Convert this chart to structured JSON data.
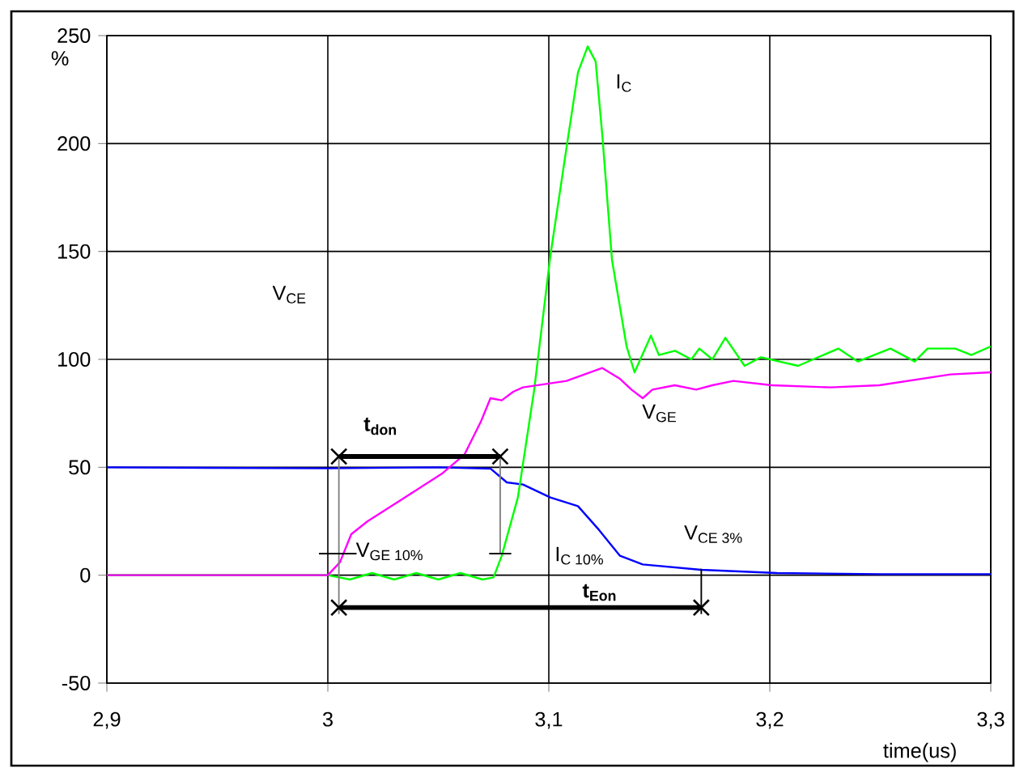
{
  "chart_data": {
    "type": "line",
    "xlabel": "time(us)",
    "ylabel": "%",
    "xlim": [
      2.9,
      3.3
    ],
    "ylim": [
      -50,
      250
    ],
    "xticks": [
      {
        "value": 2.9,
        "label": "2,9"
      },
      {
        "value": 3.0,
        "label": "3"
      },
      {
        "value": 3.1,
        "label": "3,1"
      },
      {
        "value": 3.2,
        "label": "3,2"
      },
      {
        "value": 3.3,
        "label": "3,3"
      }
    ],
    "yticks": [
      -50,
      0,
      50,
      100,
      150,
      200,
      250
    ],
    "grid": true,
    "marker": "none",
    "line_style": "solid",
    "series": [
      {
        "color": "#0000ff",
        "x": [
          2.9,
          3.0,
          3.05,
          3.0736,
          3.081,
          3.0883,
          3.1007,
          3.1132,
          3.1227,
          3.1322,
          3.1425,
          3.1689,
          3.2033,
          3.25,
          3.3
        ],
        "values": [
          50,
          49.5,
          50,
          49.4,
          43,
          42,
          36,
          32,
          21,
          9,
          5,
          2.5,
          1,
          0.5,
          0.5
        ]
      },
      {
        "color": "#00ff00",
        "x": [
          2.9,
          3.0,
          3.01,
          3.02,
          3.03,
          3.04,
          3.05,
          3.06,
          3.07,
          3.075,
          3.0787,
          3.086,
          3.0934,
          3.1007,
          3.108,
          3.1132,
          3.1176,
          3.1212,
          3.1242,
          3.1286,
          3.1352,
          3.1388,
          3.1462,
          3.1498,
          3.1571,
          3.1645,
          3.1681,
          3.174,
          3.1799,
          3.1886,
          3.196,
          3.2128,
          3.2311,
          3.2399,
          3.2546,
          3.2656,
          3.2714,
          3.2839,
          3.2912,
          3.3
        ],
        "values": [
          0,
          0,
          -2,
          1,
          -2,
          1,
          -2,
          1,
          -2,
          -1,
          9,
          36,
          86,
          148,
          198,
          233,
          245,
          238,
          204,
          146,
          106,
          94,
          111,
          102,
          104,
          100,
          105,
          100,
          110,
          97,
          101,
          97,
          105,
          99,
          105,
          99,
          105,
          105,
          102,
          106
        ]
      },
      {
        "color": "#ff00ff",
        "x": [
          2.9,
          3.0,
          3.0055,
          3.0106,
          3.018,
          3.0348,
          3.0516,
          3.0619,
          3.0692,
          3.0736,
          3.0787,
          3.0839,
          3.0883,
          3.108,
          3.1242,
          3.1322,
          3.1374,
          3.1425,
          3.1469,
          3.157,
          3.1667,
          3.174,
          3.1835,
          3.201,
          3.2275,
          3.2495,
          3.2817,
          3.3
        ],
        "values": [
          0,
          0,
          6,
          19,
          25,
          36,
          47,
          56,
          71,
          82,
          81,
          85,
          87,
          90,
          96,
          91,
          86,
          82,
          86,
          88,
          86,
          88,
          90,
          88,
          87,
          88,
          93,
          94
        ]
      },
      {
        "color": "#000000",
        "marker": "cross",
        "x": [
          3.005,
          3.078
        ],
        "values": [
          55,
          55
        ]
      },
      {
        "color": "#000000",
        "marker": "cross",
        "x": [
          3.005,
          3.169
        ],
        "values": [
          -15,
          -15
        ]
      },
      {
        "color": "#808080",
        "x": [
          3.005,
          3.005
        ],
        "values": [
          55,
          -18
        ]
      },
      {
        "color": "#808080",
        "x": [
          3.078,
          3.078
        ],
        "values": [
          55,
          10
        ]
      },
      {
        "color": "#000000",
        "x": [
          3.169,
          3.169
        ],
        "values": [
          3,
          -18
        ]
      },
      {
        "color": "#000000",
        "x": [
          2.996,
          3.013
        ],
        "values": [
          10,
          10
        ]
      },
      {
        "color": "#000000",
        "x": [
          3.073,
          3.083
        ],
        "values": [
          10,
          10
        ]
      }
    ],
    "annotations": [
      "V$_{CE}$",
      "I$_{C}$",
      "V$_{GE}$",
      "V$_{GE 10%}$",
      "I$_{C 10%}$",
      "V$_{CE 3%}$",
      "t$_{don}$",
      "t$_{Eon}$"
    ]
  }
}
